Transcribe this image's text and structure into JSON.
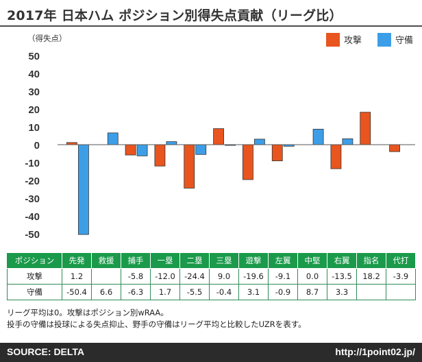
{
  "title": "2017年 日本ハム ポジション別得失点貢献（リーグ比）",
  "chart_data": {
    "type": "bar",
    "ylabel": "（得失点）",
    "ylim": [
      -50,
      50
    ],
    "yticks": [
      50,
      40,
      30,
      20,
      10,
      0,
      -10,
      -20,
      -30,
      -40,
      -50
    ],
    "categories": [
      "先発",
      "救援",
      "捕手",
      "一塁",
      "二塁",
      "三塁",
      "遊撃",
      "左翼",
      "中堅",
      "右翼",
      "指名",
      "代打"
    ],
    "series": [
      {
        "name": "攻撃",
        "color": "#e8551e",
        "values": [
          1.2,
          null,
          -5.8,
          -12.0,
          -24.4,
          9.0,
          -19.6,
          -9.1,
          0.0,
          -13.5,
          18.2,
          -3.9
        ]
      },
      {
        "name": "守備",
        "color": "#3d9ee8",
        "values": [
          -50.4,
          6.6,
          -6.3,
          1.7,
          -5.5,
          -0.4,
          3.1,
          -0.9,
          8.7,
          3.3,
          null,
          null
        ]
      }
    ],
    "legend_position": "top-right",
    "grid": false
  },
  "table": {
    "header": [
      "ポジション",
      "先発",
      "救援",
      "捕手",
      "一塁",
      "二塁",
      "三塁",
      "遊撃",
      "左翼",
      "中堅",
      "右翼",
      "指名",
      "代打"
    ],
    "rows": [
      {
        "label": "攻撃",
        "cells": [
          "1.2",
          "",
          "-5.8",
          "-12.0",
          "-24.4",
          "9.0",
          "-19.6",
          "-9.1",
          "0.0",
          "-13.5",
          "18.2",
          "-3.9"
        ]
      },
      {
        "label": "守備",
        "cells": [
          "-50.4",
          "6.6",
          "-6.3",
          "1.7",
          "-5.5",
          "-0.4",
          "3.1",
          "-0.9",
          "8.7",
          "3.3",
          "",
          ""
        ]
      }
    ]
  },
  "notes": [
    "リーグ平均は0。攻撃はポジション別wRAA。",
    "投手の守備は投球による失点抑止、野手の守備はリーグ平均と比較したUZRを表す。"
  ],
  "footer": {
    "source": "SOURCE: DELTA",
    "url": "http://1point02.jp/"
  }
}
